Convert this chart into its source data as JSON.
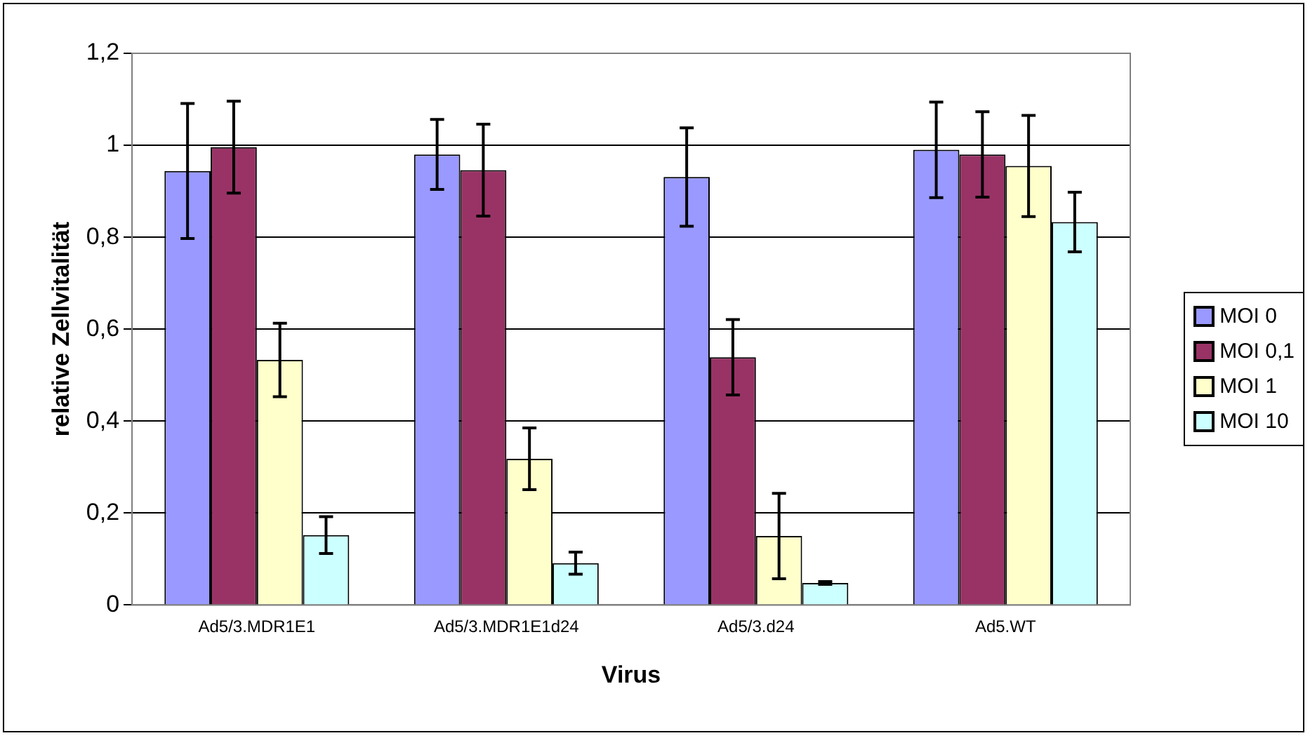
{
  "chart_data": {
    "type": "bar",
    "xlabel": "Virus",
    "ylabel": "relative Zellvitalität",
    "categories": [
      "Ad5/3.MDR1E1",
      "Ad5/3.MDR1E1d24",
      "Ad5/3.d24",
      "Ad5.WT"
    ],
    "series": [
      {
        "name": "MOI 0",
        "color": "#9999ff",
        "values": [
          0.944,
          0.98,
          0.931,
          0.99
        ],
        "errors": [
          0.147,
          0.076,
          0.107,
          0.104
        ]
      },
      {
        "name": "MOI 0,1",
        "color": "#993366",
        "values": [
          0.996,
          0.946,
          0.539,
          0.98
        ],
        "errors": [
          0.1,
          0.1,
          0.082,
          0.093
        ]
      },
      {
        "name": "MOI 1",
        "color": "#ffffcc",
        "values": [
          0.533,
          0.318,
          0.15,
          0.955
        ],
        "errors": [
          0.08,
          0.067,
          0.093,
          0.11
        ]
      },
      {
        "name": "MOI 10",
        "color": "#ccffff",
        "values": [
          0.152,
          0.091,
          0.048,
          0.833
        ],
        "errors": [
          0.04,
          0.024,
          0.003,
          0.065
        ]
      }
    ],
    "ylim": [
      0,
      1.2
    ],
    "yticks": [
      0,
      {
        "value": 0.2,
        "label": "0,2"
      },
      {
        "value": 0.4,
        "label": "0,4"
      },
      {
        "value": 0.6,
        "label": "0,6"
      },
      {
        "value": 0.8,
        "label": "0,8"
      },
      1,
      {
        "value": 1.2,
        "label": "1,2"
      }
    ],
    "grid": "y",
    "legend": "right"
  }
}
